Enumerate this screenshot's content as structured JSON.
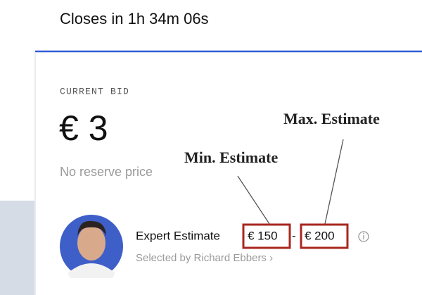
{
  "header": {
    "countdown": "Closes in 1h 34m 06s"
  },
  "bid": {
    "label": "CURRENT BID",
    "amount": "€ 3",
    "reserve": "No reserve price"
  },
  "expert": {
    "label": "Expert Estimate",
    "min": "€ 150",
    "separator": "-",
    "max": "€ 200",
    "selected_by": "Selected by Richard Ebbers ›"
  },
  "annotations": {
    "min": "Min. Estimate",
    "max": "Max. Estimate"
  }
}
